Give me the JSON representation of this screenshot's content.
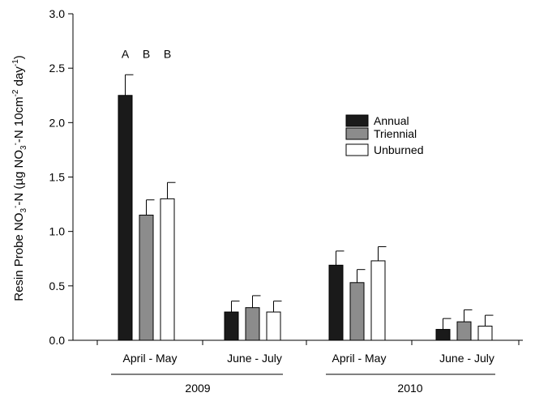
{
  "chart_data": {
    "type": "bar",
    "ylabel_parts": [
      "Resin Probe NO",
      "3",
      "-",
      "-N (µg NO",
      "3",
      "-",
      "-N 10cm",
      "-2",
      " day",
      "-1",
      ")"
    ],
    "ylim": [
      0,
      3.0
    ],
    "yticks": [
      "0.0",
      "0.5",
      "1.0",
      "1.5",
      "2.0",
      "2.5",
      "3.0"
    ],
    "yticks_values": [
      0,
      0.5,
      1.0,
      1.5,
      2.0,
      2.5,
      3.0
    ],
    "groups": [
      {
        "period": "April - May",
        "year": "2009"
      },
      {
        "period": "June - July",
        "year": "2009"
      },
      {
        "period": "April - May",
        "year": "2010"
      },
      {
        "period": "June - July",
        "year": "2010"
      }
    ],
    "years": [
      "2009",
      "2010"
    ],
    "series": [
      {
        "name": "Annual",
        "color": "#1a1a1a",
        "values": [
          2.25,
          0.26,
          0.69,
          0.1
        ],
        "errors": [
          0.19,
          0.1,
          0.13,
          0.1
        ]
      },
      {
        "name": "Triennial",
        "color": "#8c8c8c",
        "values": [
          1.15,
          0.3,
          0.53,
          0.17
        ],
        "errors": [
          0.14,
          0.11,
          0.12,
          0.11
        ]
      },
      {
        "name": "Unburned",
        "color": "#ffffff",
        "values": [
          1.3,
          0.26,
          0.73,
          0.13
        ],
        "errors": [
          0.15,
          0.1,
          0.13,
          0.1
        ]
      }
    ],
    "significance_labels": [
      "A",
      "B",
      "B"
    ],
    "significance_y": 2.63,
    "legend_position": "center-right"
  }
}
